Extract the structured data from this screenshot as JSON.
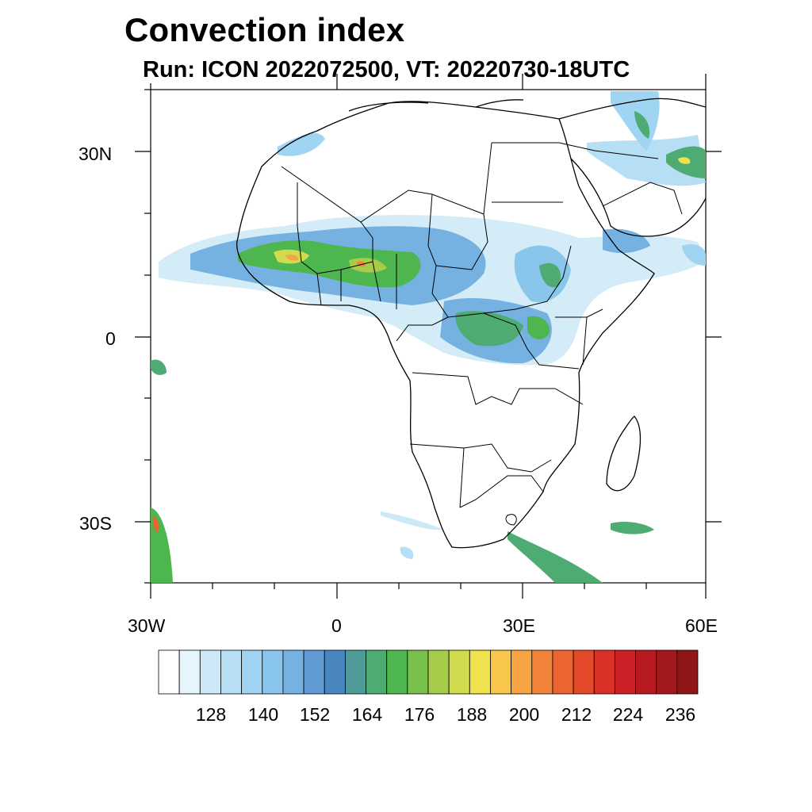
{
  "header": {
    "title": "Convection index",
    "subtitle": "Run: ICON 2022072500,  VT: 20220730-18UTC"
  },
  "axes": {
    "lat_labels": [
      "30N",
      "0",
      "30S"
    ],
    "lon_labels": [
      "30W",
      "0",
      "30E",
      "60E"
    ]
  },
  "colorbar": {
    "labels": [
      "128",
      "140",
      "152",
      "164",
      "176",
      "188",
      "200",
      "212",
      "224",
      "236"
    ],
    "colors": [
      "#ffffff",
      "#e6f4fb",
      "#cde9f7",
      "#b6def5",
      "#9fd4f3",
      "#8ac5ec",
      "#75b2e2",
      "#5f9bd2",
      "#4a86c0",
      "#4e9b9a",
      "#4eac72",
      "#4db64e",
      "#77c04b",
      "#a6cc4a",
      "#d2db4d",
      "#f0e24e",
      "#f8c64b",
      "#f6a444",
      "#f2843a",
      "#ec6430",
      "#e4492a",
      "#da3126",
      "#cc2126",
      "#b81a22",
      "#a3181c",
      "#8e1616"
    ]
  },
  "map": {
    "projection": "lat-lon",
    "lon_range": [
      -30,
      60
    ],
    "lat_range": [
      -40,
      40
    ]
  }
}
